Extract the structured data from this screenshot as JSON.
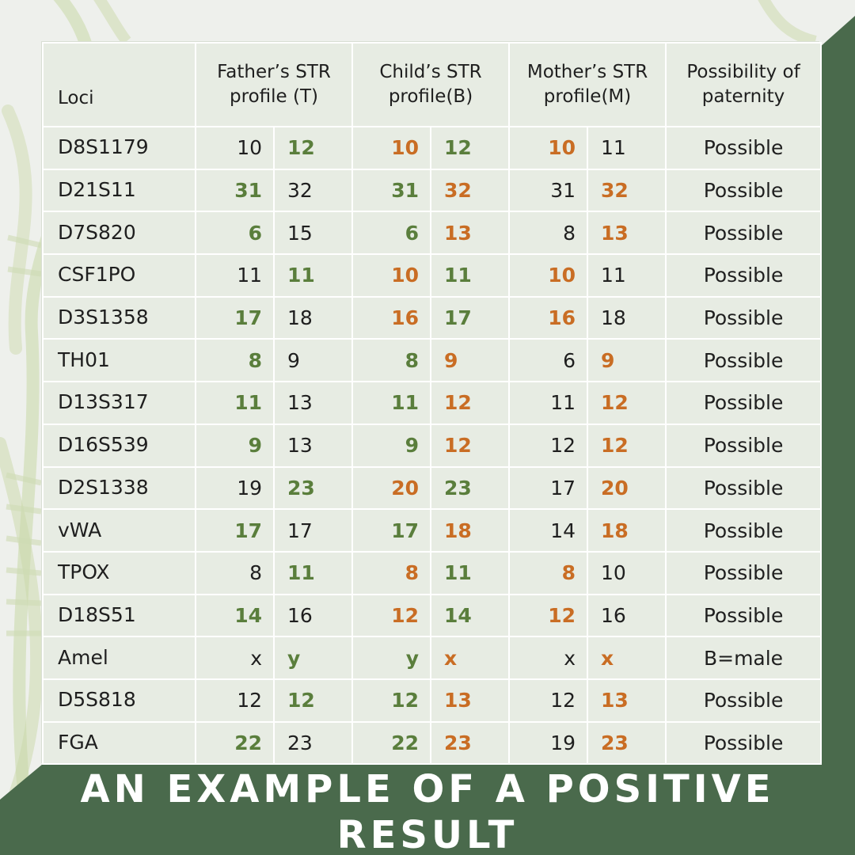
{
  "colors": {
    "background": "#eef0ec",
    "wedge": "#4a6a4c",
    "green_allele": "#5a7e3c",
    "orange_allele": "#c96d24"
  },
  "table": {
    "headers": {
      "loci": "Loci",
      "father_line1": "Father’s STR",
      "father_line2": "profile (T)",
      "child_line1": "Child’s STR",
      "child_line2": "profile(B)",
      "mother_line1": "Mother’s STR",
      "mother_line2": "profile(M)",
      "poss_line1": "Possibility of",
      "poss_line2": "paternity"
    },
    "rows": [
      {
        "locus": "D8S1179",
        "father": [
          {
            "v": "10",
            "c": "plain"
          },
          {
            "v": "12",
            "c": "green"
          }
        ],
        "child": [
          {
            "v": "10",
            "c": "orange"
          },
          {
            "v": "12",
            "c": "green"
          }
        ],
        "mother": [
          {
            "v": "10",
            "c": "orange"
          },
          {
            "v": "11",
            "c": "plain"
          }
        ],
        "possibility": "Possible"
      },
      {
        "locus": "D21S11",
        "father": [
          {
            "v": "31",
            "c": "green"
          },
          {
            "v": "32",
            "c": "plain"
          }
        ],
        "child": [
          {
            "v": "31",
            "c": "green"
          },
          {
            "v": "32",
            "c": "orange"
          }
        ],
        "mother": [
          {
            "v": "31",
            "c": "plain"
          },
          {
            "v": "32",
            "c": "orange"
          }
        ],
        "possibility": "Possible"
      },
      {
        "locus": "D7S820",
        "father": [
          {
            "v": "6",
            "c": "green"
          },
          {
            "v": "15",
            "c": "plain"
          }
        ],
        "child": [
          {
            "v": "6",
            "c": "green"
          },
          {
            "v": "13",
            "c": "orange"
          }
        ],
        "mother": [
          {
            "v": "8",
            "c": "plain"
          },
          {
            "v": "13",
            "c": "orange"
          }
        ],
        "possibility": "Possible"
      },
      {
        "locus": "CSF1PO",
        "father": [
          {
            "v": "11",
            "c": "plain"
          },
          {
            "v": "11",
            "c": "green"
          }
        ],
        "child": [
          {
            "v": "10",
            "c": "orange"
          },
          {
            "v": "11",
            "c": "green"
          }
        ],
        "mother": [
          {
            "v": "10",
            "c": "orange"
          },
          {
            "v": "11",
            "c": "plain"
          }
        ],
        "possibility": "Possible"
      },
      {
        "locus": "D3S1358",
        "father": [
          {
            "v": "17",
            "c": "green"
          },
          {
            "v": "18",
            "c": "plain"
          }
        ],
        "child": [
          {
            "v": "16",
            "c": "orange"
          },
          {
            "v": "17",
            "c": "green"
          }
        ],
        "mother": [
          {
            "v": "16",
            "c": "orange"
          },
          {
            "v": "18",
            "c": "plain"
          }
        ],
        "possibility": "Possible"
      },
      {
        "locus": "TH01",
        "father": [
          {
            "v": "8",
            "c": "green"
          },
          {
            "v": "9",
            "c": "plain"
          }
        ],
        "child": [
          {
            "v": "8",
            "c": "green"
          },
          {
            "v": "9",
            "c": "orange"
          }
        ],
        "mother": [
          {
            "v": "6",
            "c": "plain"
          },
          {
            "v": "9",
            "c": "orange"
          }
        ],
        "possibility": "Possible"
      },
      {
        "locus": "D13S317",
        "father": [
          {
            "v": "11",
            "c": "green"
          },
          {
            "v": "13",
            "c": "plain"
          }
        ],
        "child": [
          {
            "v": "11",
            "c": "green"
          },
          {
            "v": "12",
            "c": "orange"
          }
        ],
        "mother": [
          {
            "v": "11",
            "c": "plain"
          },
          {
            "v": "12",
            "c": "orange"
          }
        ],
        "possibility": "Possible"
      },
      {
        "locus": "D16S539",
        "father": [
          {
            "v": "9",
            "c": "green"
          },
          {
            "v": "13",
            "c": "plain"
          }
        ],
        "child": [
          {
            "v": "9",
            "c": "green"
          },
          {
            "v": "12",
            "c": "orange"
          }
        ],
        "mother": [
          {
            "v": "12",
            "c": "plain"
          },
          {
            "v": "12",
            "c": "orange"
          }
        ],
        "possibility": "Possible"
      },
      {
        "locus": "D2S1338",
        "father": [
          {
            "v": "19",
            "c": "plain"
          },
          {
            "v": "23",
            "c": "green"
          }
        ],
        "child": [
          {
            "v": "20",
            "c": "orange"
          },
          {
            "v": "23",
            "c": "green"
          }
        ],
        "mother": [
          {
            "v": "17",
            "c": "plain"
          },
          {
            "v": "20",
            "c": "orange"
          }
        ],
        "possibility": "Possible"
      },
      {
        "locus": "vWA",
        "father": [
          {
            "v": "17",
            "c": "green"
          },
          {
            "v": "17",
            "c": "plain"
          }
        ],
        "child": [
          {
            "v": "17",
            "c": "green"
          },
          {
            "v": "18",
            "c": "orange"
          }
        ],
        "mother": [
          {
            "v": "14",
            "c": "plain"
          },
          {
            "v": "18",
            "c": "orange"
          }
        ],
        "possibility": "Possible"
      },
      {
        "locus": "TPOX",
        "father": [
          {
            "v": "8",
            "c": "plain"
          },
          {
            "v": "11",
            "c": "green"
          }
        ],
        "child": [
          {
            "v": "8",
            "c": "orange"
          },
          {
            "v": "11",
            "c": "green"
          }
        ],
        "mother": [
          {
            "v": "8",
            "c": "orange"
          },
          {
            "v": "10",
            "c": "plain"
          }
        ],
        "possibility": "Possible"
      },
      {
        "locus": "D18S51",
        "father": [
          {
            "v": "14",
            "c": "green"
          },
          {
            "v": "16",
            "c": "plain"
          }
        ],
        "child": [
          {
            "v": "12",
            "c": "orange"
          },
          {
            "v": "14",
            "c": "green"
          }
        ],
        "mother": [
          {
            "v": "12",
            "c": "orange"
          },
          {
            "v": "16",
            "c": "plain"
          }
        ],
        "possibility": "Possible"
      },
      {
        "locus": "Amel",
        "father": [
          {
            "v": "x",
            "c": "plain"
          },
          {
            "v": "y",
            "c": "green"
          }
        ],
        "child": [
          {
            "v": "y",
            "c": "green"
          },
          {
            "v": "x",
            "c": "orange"
          }
        ],
        "mother": [
          {
            "v": "x",
            "c": "plain"
          },
          {
            "v": "x",
            "c": "orange"
          }
        ],
        "possibility": "B=male"
      },
      {
        "locus": "D5S818",
        "father": [
          {
            "v": "12",
            "c": "plain"
          },
          {
            "v": "12",
            "c": "green"
          }
        ],
        "child": [
          {
            "v": "12",
            "c": "green"
          },
          {
            "v": "13",
            "c": "orange"
          }
        ],
        "mother": [
          {
            "v": "12",
            "c": "plain"
          },
          {
            "v": "13",
            "c": "orange"
          }
        ],
        "possibility": "Possible"
      },
      {
        "locus": "FGA",
        "father": [
          {
            "v": "22",
            "c": "green"
          },
          {
            "v": "23",
            "c": "plain"
          }
        ],
        "child": [
          {
            "v": "22",
            "c": "green"
          },
          {
            "v": "23",
            "c": "orange"
          }
        ],
        "mother": [
          {
            "v": "19",
            "c": "plain"
          },
          {
            "v": "23",
            "c": "orange"
          }
        ],
        "possibility": "Possible"
      }
    ]
  },
  "caption": {
    "line1": "AN EXAMPLE OF A POSITIVE",
    "line2": "RESULT"
  }
}
